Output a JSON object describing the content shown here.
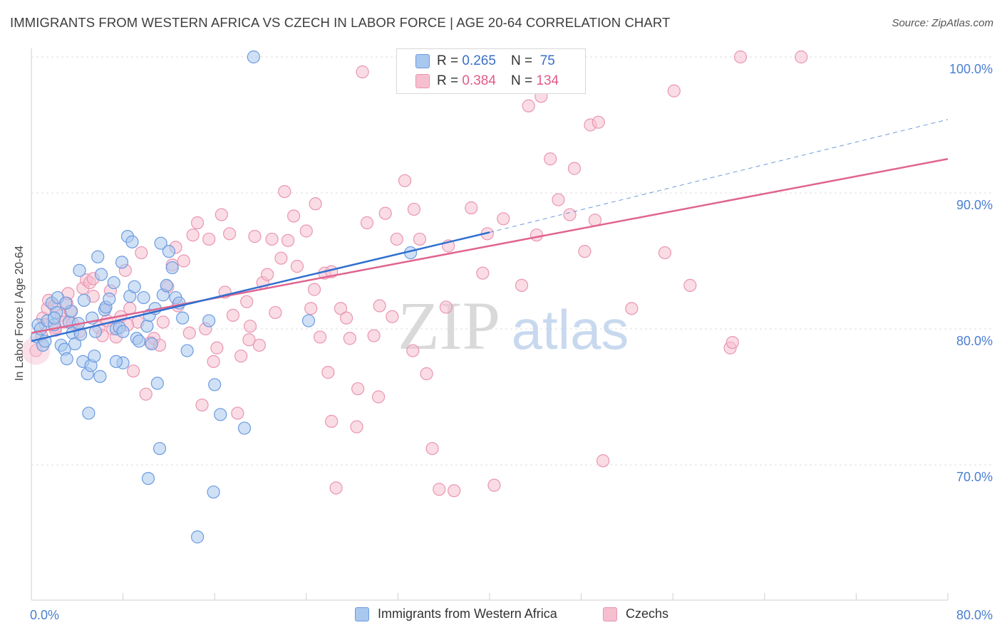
{
  "title": "IMMIGRANTS FROM WESTERN AFRICA VS CZECH IN LABOR FORCE | AGE 20-64 CORRELATION CHART",
  "source": "Source: ZipAtlas.com",
  "watermark": {
    "zip": "ZIP",
    "atlas": "atlas"
  },
  "colors": {
    "blue_fill": "#a9c8ef",
    "blue_stroke": "#6b9be0",
    "blue_line": "#2f6fcf",
    "pink_fill": "#f6bfd0",
    "pink_stroke": "#e995b1",
    "pink_line": "#e0648f",
    "axis_text": "#4a7fd1",
    "grid": "#dcdcdc"
  },
  "legend_top": [
    {
      "r_label": "R = ",
      "r_value": "0.265",
      "n_label": "N = ",
      "n_value": " 75"
    },
    {
      "r_label": "R = ",
      "r_value": "0.384",
      "n_label": "N = ",
      "n_value": "134"
    }
  ],
  "legend_bottom": [
    "Immigrants from Western Africa",
    "Czechs"
  ],
  "chart_data": {
    "type": "scatter",
    "title": "IMMIGRANTS FROM WESTERN AFRICA VS CZECH IN LABOR FORCE | AGE 20-64 CORRELATION CHART",
    "xlabel": "",
    "ylabel": "In Labor Force | Age 20-64",
    "xlim": [
      0,
      80
    ],
    "ylim": [
      61,
      101
    ],
    "x_tick_labels": [
      "0.0%",
      "80.0%"
    ],
    "y_ticks": [
      70,
      80,
      90,
      100
    ],
    "y_tick_labels": [
      "70.0%",
      "80.0%",
      "90.0%",
      "100.0%"
    ],
    "grid": "horizontal dashed",
    "legend_position": "top-center",
    "series": [
      {
        "name": "Immigrants from Western Africa",
        "color": "#a9c8ef",
        "trend": {
          "x": [
            0,
            40
          ],
          "y": [
            79.1,
            87.1
          ],
          "dashed_extension_to": [
            80,
            95.4
          ]
        },
        "points": [
          [
            0.5,
            79.4
          ],
          [
            0.6,
            80.3
          ],
          [
            0.8,
            80.0
          ],
          [
            1.0,
            78.8
          ],
          [
            1.2,
            79.1
          ],
          [
            1.4,
            80.6
          ],
          [
            1.8,
            81.9
          ],
          [
            2.0,
            80.3
          ],
          [
            2.2,
            81.2
          ],
          [
            2.3,
            82.3
          ],
          [
            2.6,
            78.8
          ],
          [
            2.9,
            78.5
          ],
          [
            3.1,
            77.8
          ],
          [
            3.3,
            80.5
          ],
          [
            3.5,
            81.3
          ],
          [
            3.6,
            79.7
          ],
          [
            3.8,
            78.9
          ],
          [
            4.1,
            80.4
          ],
          [
            4.3,
            79.6
          ],
          [
            4.5,
            77.6
          ],
          [
            4.6,
            82.1
          ],
          [
            4.9,
            76.7
          ],
          [
            5.0,
            73.8
          ],
          [
            5.2,
            77.3
          ],
          [
            5.3,
            80.8
          ],
          [
            5.6,
            79.8
          ],
          [
            5.8,
            85.3
          ],
          [
            6.1,
            84.0
          ],
          [
            6.4,
            81.4
          ],
          [
            6.5,
            81.6
          ],
          [
            6.8,
            82.2
          ],
          [
            7.2,
            83.4
          ],
          [
            7.4,
            80.0
          ],
          [
            7.7,
            80.1
          ],
          [
            7.9,
            84.9
          ],
          [
            8.0,
            77.5
          ],
          [
            8.4,
            86.8
          ],
          [
            8.6,
            82.4
          ],
          [
            8.8,
            86.4
          ],
          [
            9.0,
            83.1
          ],
          [
            9.2,
            79.3
          ],
          [
            9.4,
            79.1
          ],
          [
            9.8,
            82.3
          ],
          [
            10.1,
            80.2
          ],
          [
            10.3,
            81.0
          ],
          [
            10.5,
            78.9
          ],
          [
            10.8,
            81.5
          ],
          [
            11.0,
            76.0
          ],
          [
            11.3,
            86.3
          ],
          [
            11.5,
            82.5
          ],
          [
            11.8,
            83.2
          ],
          [
            12.0,
            85.7
          ],
          [
            12.3,
            84.5
          ],
          [
            12.6,
            82.3
          ],
          [
            12.9,
            81.9
          ],
          [
            13.2,
            80.8
          ],
          [
            13.6,
            78.4
          ],
          [
            7.4,
            77.6
          ],
          [
            8.0,
            79.8
          ],
          [
            3.0,
            81.9
          ],
          [
            4.2,
            84.3
          ],
          [
            5.5,
            78.0
          ],
          [
            6.0,
            76.5
          ],
          [
            2.0,
            80.8
          ],
          [
            15.5,
            80.6
          ],
          [
            15.9,
            68.0
          ],
          [
            18.6,
            72.7
          ],
          [
            16.0,
            75.9
          ],
          [
            10.2,
            69.0
          ],
          [
            11.2,
            71.2
          ],
          [
            16.5,
            73.7
          ],
          [
            14.5,
            64.7
          ],
          [
            19.4,
            100.0
          ],
          [
            24.2,
            80.6
          ],
          [
            33.1,
            85.6
          ]
        ]
      },
      {
        "name": "Czechs",
        "color": "#f6bfd0",
        "trend": {
          "x": [
            0,
            80
          ],
          "y": [
            79.7,
            92.5
          ]
        },
        "points": [
          [
            0.4,
            78.4
          ],
          [
            0.9,
            79.5
          ],
          [
            1.0,
            80.8
          ],
          [
            1.2,
            80.3
          ],
          [
            1.4,
            81.5
          ],
          [
            1.5,
            82.1
          ],
          [
            2.0,
            81.7
          ],
          [
            2.1,
            79.9
          ],
          [
            2.6,
            81.0
          ],
          [
            2.9,
            80.5
          ],
          [
            3.1,
            81.9
          ],
          [
            3.4,
            81.3
          ],
          [
            3.6,
            80.4
          ],
          [
            4.2,
            79.8
          ],
          [
            4.5,
            83.0
          ],
          [
            4.8,
            83.6
          ],
          [
            5.1,
            83.4
          ],
          [
            5.4,
            82.4
          ],
          [
            5.9,
            80.1
          ],
          [
            6.2,
            79.5
          ],
          [
            6.6,
            80.6
          ],
          [
            7.1,
            80.0
          ],
          [
            7.4,
            79.4
          ],
          [
            7.8,
            80.9
          ],
          [
            8.2,
            84.3
          ],
          [
            8.6,
            81.5
          ],
          [
            8.9,
            76.9
          ],
          [
            9.3,
            80.5
          ],
          [
            9.6,
            85.6
          ],
          [
            10.0,
            75.2
          ],
          [
            10.4,
            79.0
          ],
          [
            10.7,
            79.3
          ],
          [
            11.2,
            78.8
          ],
          [
            11.5,
            80.5
          ],
          [
            11.9,
            83.1
          ],
          [
            12.3,
            84.7
          ],
          [
            12.6,
            86.0
          ],
          [
            12.8,
            81.7
          ],
          [
            13.3,
            85.0
          ],
          [
            13.8,
            79.7
          ],
          [
            14.1,
            86.9
          ],
          [
            14.5,
            87.8
          ],
          [
            14.9,
            74.4
          ],
          [
            15.2,
            80.0
          ],
          [
            15.5,
            86.6
          ],
          [
            15.9,
            77.6
          ],
          [
            16.2,
            78.6
          ],
          [
            16.6,
            88.4
          ],
          [
            16.9,
            82.7
          ],
          [
            17.3,
            87.0
          ],
          [
            17.6,
            81.0
          ],
          [
            18.0,
            73.8
          ],
          [
            18.3,
            78.0
          ],
          [
            18.8,
            82.0
          ],
          [
            19.1,
            80.2
          ],
          [
            19.5,
            86.8
          ],
          [
            19.9,
            78.8
          ],
          [
            20.2,
            83.4
          ],
          [
            20.6,
            84.0
          ],
          [
            21.0,
            86.6
          ],
          [
            21.3,
            81.2
          ],
          [
            21.8,
            85.2
          ],
          [
            22.1,
            90.1
          ],
          [
            22.4,
            86.5
          ],
          [
            22.9,
            88.3
          ],
          [
            23.2,
            84.6
          ],
          [
            24.0,
            87.2
          ],
          [
            24.4,
            81.5
          ],
          [
            24.8,
            89.2
          ],
          [
            25.2,
            79.4
          ],
          [
            25.6,
            84.1
          ],
          [
            26.2,
            73.2
          ],
          [
            26.6,
            68.3
          ],
          [
            27.0,
            81.5
          ],
          [
            27.5,
            80.8
          ],
          [
            27.8,
            79.3
          ],
          [
            28.4,
            72.8
          ],
          [
            28.9,
            98.9
          ],
          [
            29.3,
            87.8
          ],
          [
            29.9,
            79.5
          ],
          [
            30.3,
            75.0
          ],
          [
            30.9,
            88.5
          ],
          [
            31.5,
            80.9
          ],
          [
            31.9,
            86.6
          ],
          [
            32.6,
            90.9
          ],
          [
            33.4,
            88.8
          ],
          [
            33.9,
            86.6
          ],
          [
            34.5,
            76.7
          ],
          [
            35.0,
            71.2
          ],
          [
            35.6,
            68.2
          ],
          [
            36.2,
            81.6
          ],
          [
            36.9,
            68.1
          ],
          [
            38.4,
            88.9
          ],
          [
            39.4,
            84.1
          ],
          [
            39.8,
            87.0
          ],
          [
            40.4,
            68.5
          ],
          [
            41.2,
            88.1
          ],
          [
            42.3,
            100.0
          ],
          [
            42.8,
            83.2
          ],
          [
            43.4,
            96.4
          ],
          [
            44.5,
            97.1
          ],
          [
            45.3,
            92.5
          ],
          [
            46.0,
            89.5
          ],
          [
            47.0,
            88.4
          ],
          [
            47.4,
            91.8
          ],
          [
            48.3,
            85.7
          ],
          [
            48.8,
            95.0
          ],
          [
            49.2,
            88.0
          ],
          [
            49.5,
            95.2
          ],
          [
            49.9,
            70.3
          ],
          [
            52.4,
            81.5
          ],
          [
            55.3,
            85.6
          ],
          [
            56.1,
            97.5
          ],
          [
            57.5,
            83.2
          ],
          [
            61.0,
            78.6
          ],
          [
            61.2,
            79.0
          ],
          [
            61.9,
            100.0
          ],
          [
            67.2,
            100.0
          ],
          [
            40.6,
            100.0
          ],
          [
            28.5,
            75.6
          ],
          [
            25.9,
            76.8
          ],
          [
            33.3,
            78.4
          ],
          [
            2.1,
            80.1
          ],
          [
            6.5,
            81.6
          ],
          [
            8.4,
            80.3
          ],
          [
            5.4,
            83.7
          ],
          [
            3.2,
            82.6
          ],
          [
            6.9,
            82.8
          ],
          [
            26.2,
            84.2
          ],
          [
            19.0,
            79.2
          ],
          [
            30.4,
            81.7
          ],
          [
            24.7,
            82.9
          ],
          [
            44.1,
            86.9
          ],
          [
            36.4,
            86.1
          ]
        ]
      }
    ]
  }
}
